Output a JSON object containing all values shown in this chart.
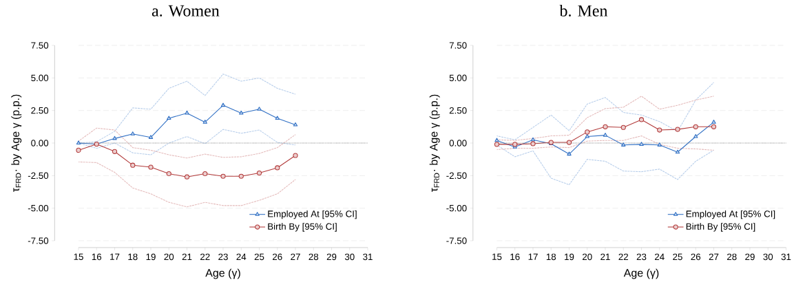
{
  "chart_data": [
    {
      "type": "line",
      "title": "a. Women",
      "xlabel": "Age (γ)",
      "ylabel": "τ$_{FRD}$· by Age γ (p.p.)",
      "x": [
        15,
        16,
        17,
        18,
        19,
        20,
        21,
        22,
        23,
        24,
        25,
        26,
        27
      ],
      "series": [
        {
          "color": "#b6cdea",
          "line_style": "dashed",
          "marker": "none",
          "values": [
            0.0,
            -0.4,
            0.0,
            -0.75,
            -0.9,
            0.0,
            0.5,
            -0.05,
            1.05,
            0.75,
            1.0,
            0.05,
            -0.15
          ]
        },
        {
          "color": "#b6cdea",
          "line_style": "dashed",
          "marker": "none",
          "values": [
            0.0,
            0.1,
            0.9,
            2.7,
            2.6,
            4.2,
            4.75,
            3.65,
            5.3,
            4.75,
            5.0,
            4.2,
            3.75
          ]
        },
        {
          "color": "#e4baba",
          "line_style": "dashed",
          "marker": "none",
          "values": [
            -1.45,
            -1.5,
            -2.25,
            -3.45,
            -3.9,
            -4.55,
            -4.9,
            -4.55,
            -4.8,
            -4.8,
            -4.4,
            -3.9,
            -2.8
          ]
        },
        {
          "color": "#e4baba",
          "line_style": "dashed",
          "marker": "none",
          "values": [
            0.15,
            1.15,
            1.0,
            -0.35,
            -0.55,
            -0.9,
            -1.15,
            -0.85,
            -1.1,
            -1.05,
            -0.8,
            -0.35,
            0.65
          ]
        },
        {
          "name": "Employed At [95% CI]",
          "color": "#2f6fc4",
          "marker": "triangle",
          "values": [
            0.0,
            -0.08,
            0.35,
            0.7,
            0.43,
            1.9,
            2.3,
            1.6,
            2.9,
            2.3,
            2.6,
            1.9,
            1.4
          ]
        },
        {
          "name": "Birth By [95% CI]",
          "color": "#b23a3a",
          "marker": "circle",
          "values": [
            -0.55,
            -0.08,
            -0.65,
            -1.7,
            -1.85,
            -2.35,
            -2.6,
            -2.35,
            -2.55,
            -2.55,
            -2.3,
            -1.9,
            -0.95
          ]
        }
      ],
      "xlim": [
        15,
        31
      ],
      "xticks": [
        15,
        16,
        17,
        18,
        19,
        20,
        21,
        22,
        23,
        24,
        25,
        26,
        27,
        28,
        29,
        30,
        31
      ],
      "ylim": [
        -7.5,
        7.5
      ],
      "yticks": [
        {
          "value": -7.5,
          "label": "-7.50"
        },
        {
          "value": -5,
          "label": "-5.00"
        },
        {
          "value": -2.5,
          "label": "-2.50"
        },
        {
          "value": 0,
          "label": "0.00"
        },
        {
          "value": 2.5,
          "label": "2.50"
        },
        {
          "value": 5,
          "label": "5.00"
        },
        {
          "value": 7.5,
          "label": "7.50"
        }
      ],
      "ref_lines": [
        {
          "axis": "y",
          "value": 0,
          "color": "#808080",
          "line_style": "dotted"
        }
      ],
      "grid": "y",
      "legend": "bottom right"
    },
    {
      "type": "line",
      "title": "b. Men",
      "xlabel": "Age (γ)",
      "ylabel": "τ$_{FRD}$· by Age γ (p.p.)",
      "x": [
        15,
        16,
        17,
        18,
        19,
        20,
        21,
        22,
        23,
        24,
        25,
        26,
        27
      ],
      "series": [
        {
          "color": "#b6cdea",
          "line_style": "dashed",
          "marker": "none",
          "values": [
            -0.15,
            -1.05,
            -0.6,
            -2.7,
            -3.2,
            -1.25,
            -1.4,
            -2.15,
            -2.2,
            -2.0,
            -2.8,
            -1.4,
            -0.55
          ]
        },
        {
          "color": "#b6cdea",
          "line_style": "dashed",
          "marker": "none",
          "values": [
            0.55,
            0.25,
            1.2,
            2.15,
            0.95,
            3.0,
            3.5,
            2.35,
            2.15,
            1.65,
            0.9,
            3.3,
            4.65
          ]
        },
        {
          "color": "#e4baba",
          "line_style": "dashed",
          "marker": "none",
          "values": [
            -0.5,
            -0.4,
            -0.4,
            -0.3,
            -0.35,
            0.15,
            0.2,
            0.2,
            0.55,
            -0.1,
            -0.4,
            -0.45,
            -0.55
          ]
        },
        {
          "color": "#e4baba",
          "line_style": "dashed",
          "marker": "none",
          "values": [
            0.25,
            0.2,
            0.35,
            0.55,
            0.6,
            1.95,
            2.65,
            2.75,
            3.6,
            2.6,
            2.9,
            3.3,
            3.6
          ]
        },
        {
          "name": "Employed At [95% CI]",
          "color": "#2f6fc4",
          "marker": "triangle",
          "values": [
            0.2,
            -0.3,
            0.25,
            -0.05,
            -0.85,
            0.5,
            0.6,
            -0.15,
            -0.1,
            -0.15,
            -0.7,
            0.5,
            1.6
          ]
        },
        {
          "name": "Birth By [95% CI]",
          "color": "#b23a3a",
          "marker": "circle",
          "values": [
            -0.1,
            -0.1,
            -0.05,
            0.05,
            0.05,
            0.85,
            1.25,
            1.2,
            1.8,
            1.0,
            1.05,
            1.25,
            1.25
          ]
        }
      ],
      "xlim": [
        15,
        31
      ],
      "xticks": [
        15,
        16,
        17,
        18,
        19,
        20,
        21,
        22,
        23,
        24,
        25,
        26,
        27,
        28,
        29,
        30,
        31
      ],
      "ylim": [
        -7.5,
        7.5
      ],
      "yticks": [
        {
          "value": -7.5,
          "label": "-7.50"
        },
        {
          "value": -5,
          "label": "-5.00"
        },
        {
          "value": -2.5,
          "label": "-2.50"
        },
        {
          "value": 0,
          "label": "0.00"
        },
        {
          "value": 2.5,
          "label": "2.50"
        },
        {
          "value": 5,
          "label": "5.00"
        },
        {
          "value": 7.5,
          "label": "7.50"
        }
      ],
      "ref_lines": [
        {
          "axis": "y",
          "value": 0,
          "color": "#808080",
          "line_style": "dotted"
        }
      ],
      "grid": "y",
      "legend": "bottom right"
    }
  ]
}
